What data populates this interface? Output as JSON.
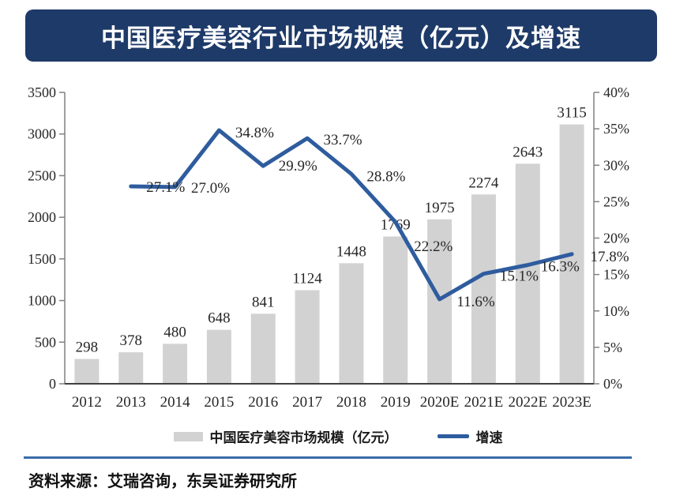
{
  "title": {
    "text": "中国医疗美容行业市场规模（亿元）及增速"
  },
  "source": {
    "text": "资料来源：艾瑞咨询，东吴证券研究所"
  },
  "legend": [
    {
      "label": "中国医疗美容市场规模（亿元）",
      "swatch": "bar",
      "color": "#d2d2d2"
    },
    {
      "label": "增速",
      "swatch": "line",
      "color": "#2e5c9e"
    }
  ],
  "colors": {
    "banner_bg": "#1e3a68",
    "banner_text": "#ffffff",
    "bar_fill": "#d2d2d2",
    "line_stroke": "#2e5c9e",
    "axis": "#808080",
    "baseline_axis": "#404040",
    "label_text": "#262626",
    "divider": "#3a6ca8",
    "page_bg": "#ffffff"
  },
  "chart_data": {
    "type": "bar",
    "combo": "bar+line",
    "title": "中国医疗美容行业市场规模（亿元）及增速",
    "categories": [
      "2012",
      "2013",
      "2014",
      "2015",
      "2016",
      "2017",
      "2018",
      "2019",
      "2020E",
      "2021E",
      "2022E",
      "2023E"
    ],
    "series": [
      {
        "name": "中国医疗美容市场规模（亿元）",
        "type": "bar",
        "axis": "left",
        "values": [
          298,
          378,
          480,
          648,
          841,
          1124,
          1448,
          1769,
          1975,
          2274,
          2643,
          3115
        ]
      },
      {
        "name": "增速",
        "type": "line",
        "axis": "right",
        "unit": "%",
        "values": [
          null,
          27.1,
          27.0,
          34.8,
          29.9,
          33.7,
          28.8,
          22.2,
          11.6,
          15.1,
          16.3,
          17.8
        ],
        "labels": [
          null,
          "27.1%",
          "27.0%",
          "34.8%",
          "29.9%",
          "33.7%",
          "28.8%",
          "22.2%",
          "11.6%",
          "15.1%",
          "16.3%",
          "17.8%"
        ],
        "label_offsets": [
          null,
          [
            44,
            1
          ],
          [
            45,
            1
          ],
          [
            45,
            3
          ],
          [
            44,
            0
          ],
          [
            45,
            2
          ],
          [
            44,
            3
          ],
          [
            48,
            31
          ],
          [
            46,
            3
          ],
          [
            45,
            3
          ],
          [
            41,
            2
          ],
          [
            48,
            3
          ]
        ]
      }
    ],
    "left_axis": {
      "min": 0,
      "max": 3500,
      "step": 500
    },
    "right_axis": {
      "min": 0,
      "max": 40,
      "step": 5,
      "format": "percent"
    },
    "grid": false,
    "legend_position": "bottom"
  }
}
